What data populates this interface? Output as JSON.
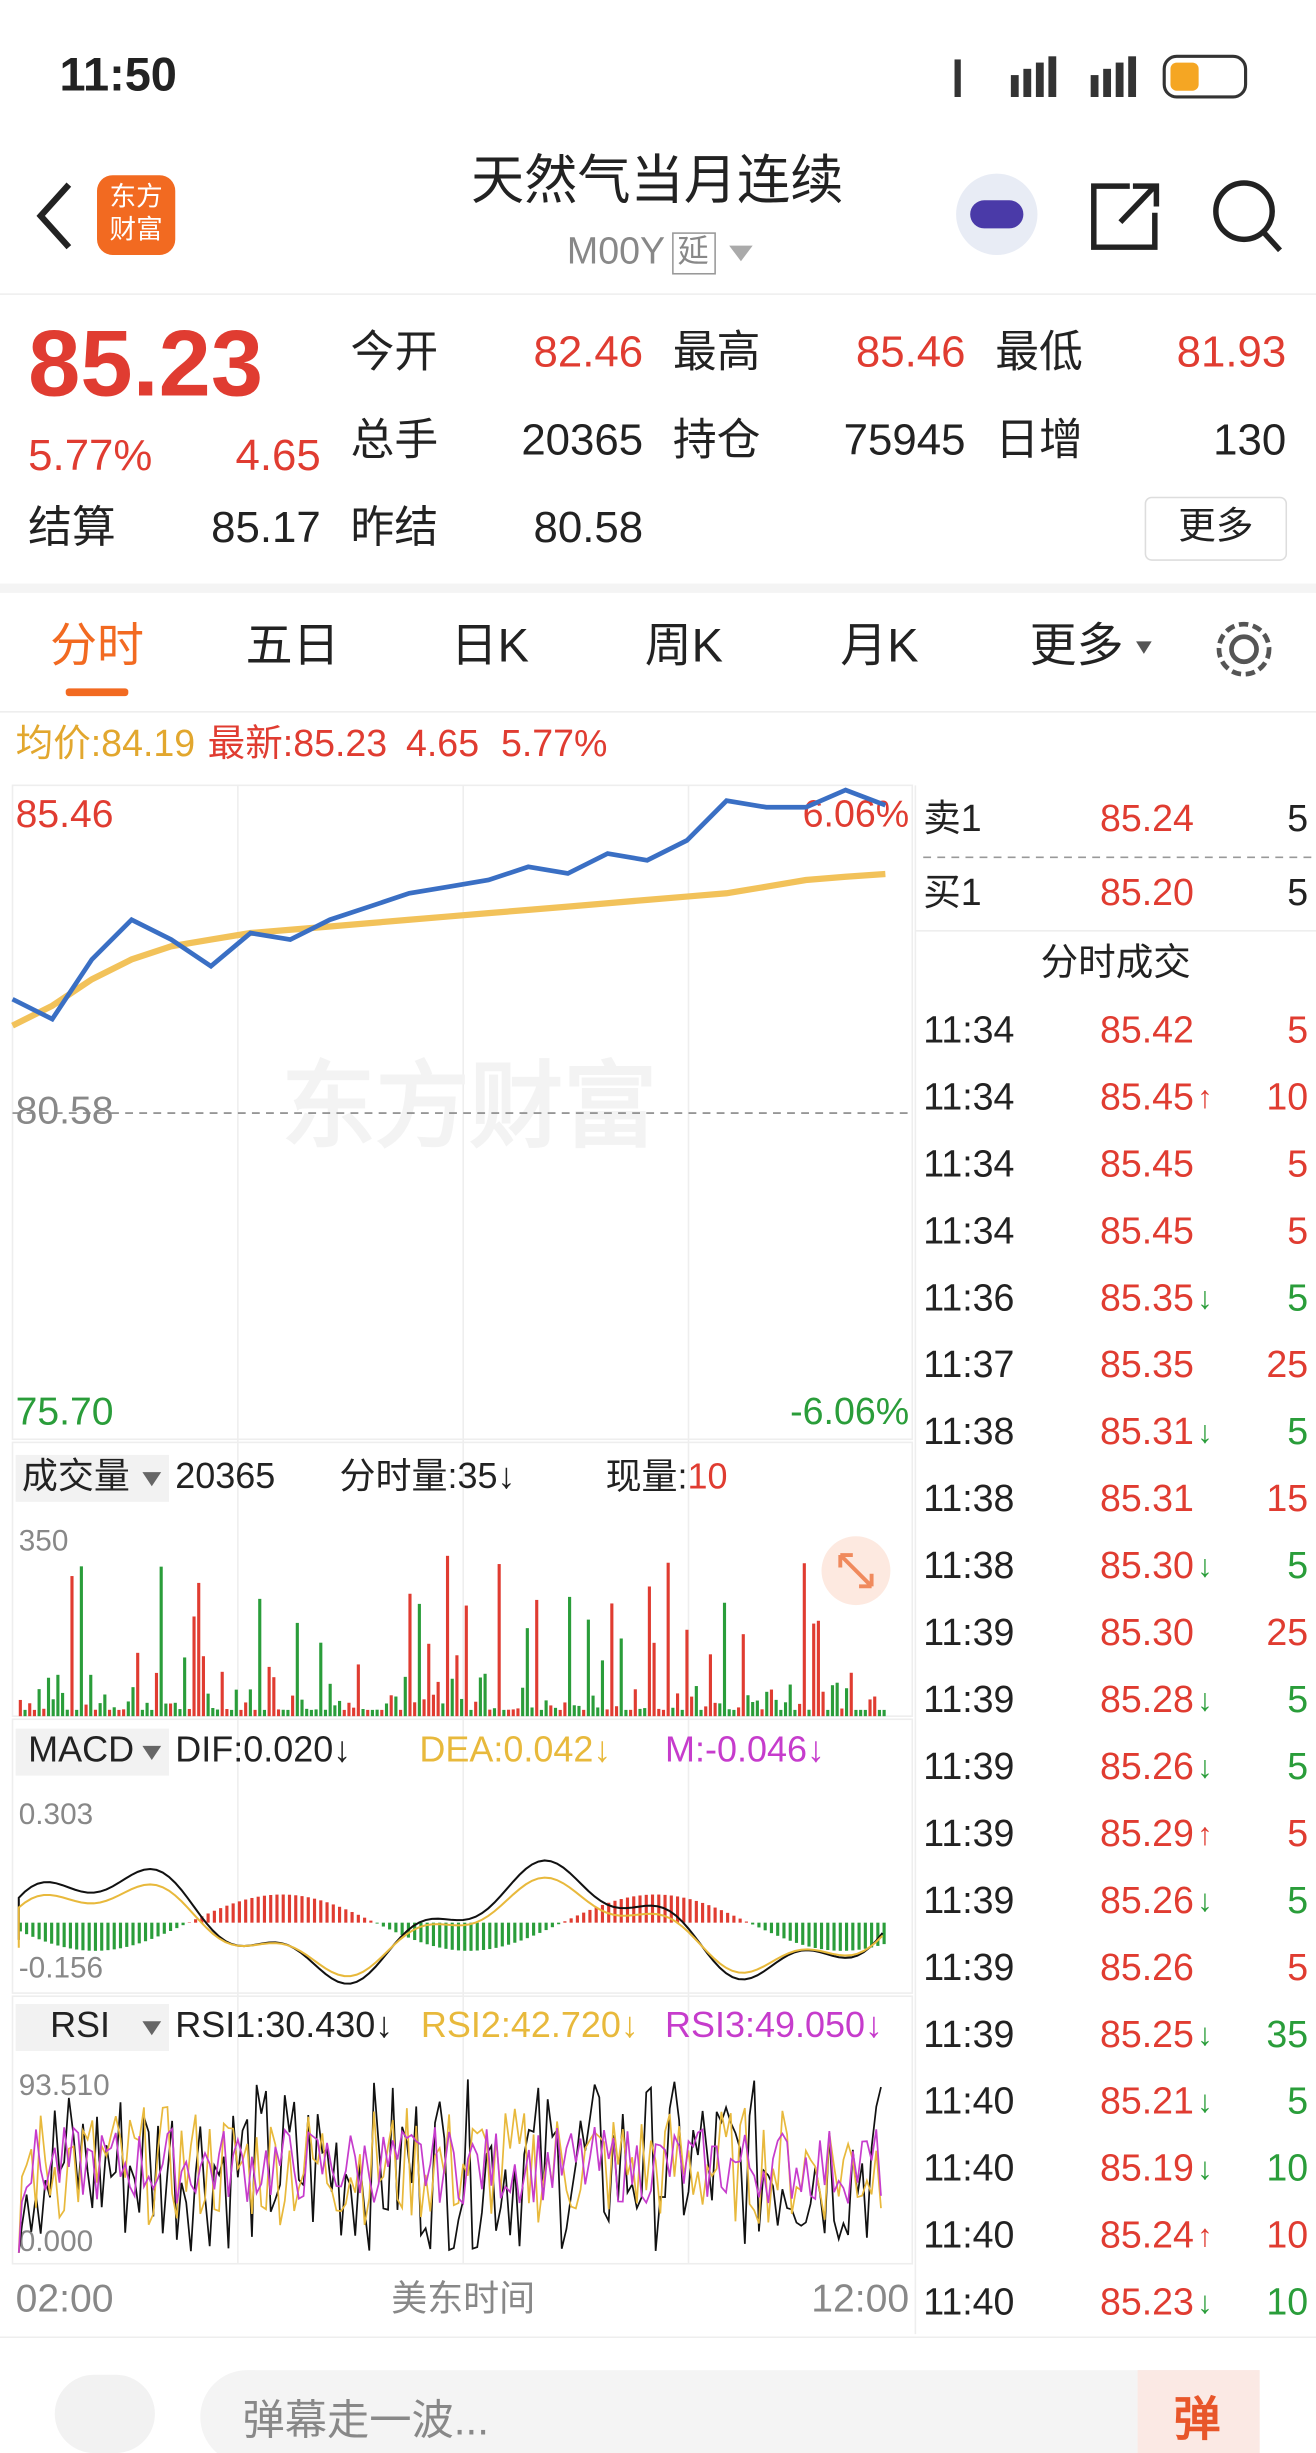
{
  "status": {
    "time": "11:50"
  },
  "header": {
    "logo": [
      "东方",
      "财富"
    ],
    "title": "天然气当月连续",
    "code": "M00Y",
    "tag": "延"
  },
  "quote": {
    "price": "85.23",
    "change_pct": "5.77%",
    "change": "4.65",
    "fields": [
      {
        "label": "今开",
        "value": "82.46"
      },
      {
        "label": "最高",
        "value": "85.46"
      },
      {
        "label": "最低",
        "value": "81.93"
      },
      {
        "label": "总手",
        "value": "20365"
      },
      {
        "label": "持仓",
        "value": "75945"
      },
      {
        "label": "日增",
        "value": "130"
      },
      {
        "label": "结算",
        "value": "85.17"
      },
      {
        "label": "昨结",
        "value": "80.58"
      }
    ],
    "more": "更多"
  },
  "tabs": [
    "分时",
    "五日",
    "日K",
    "周K",
    "月K",
    "更多"
  ],
  "avg_line": {
    "avg_label": "均价:",
    "avg": "84.19",
    "latest_label": "最新:",
    "latest": "85.23",
    "change": "4.65",
    "change_pct": "5.77%"
  },
  "chart_data": {
    "type": "line",
    "watermark": "东方财富",
    "ylim": [
      75.7,
      85.46
    ],
    "yticks": [
      {
        "value": 85.46,
        "label": "85.46"
      },
      {
        "value": 80.58,
        "label": "80.58"
      },
      {
        "value": 75.7,
        "label": "75.70"
      }
    ],
    "pct_top": "6.06%",
    "pct_bottom": "-6.06%",
    "series": [
      {
        "name": "价格",
        "color": "#3a6fc4",
        "values": [
          82.3,
          82.0,
          82.9,
          83.5,
          83.2,
          82.8,
          83.3,
          83.2,
          83.5,
          83.7,
          83.9,
          84.0,
          84.1,
          84.3,
          84.2,
          84.5,
          84.4,
          84.7,
          85.3,
          85.2,
          85.2,
          85.46,
          85.23
        ]
      },
      {
        "name": "均价",
        "color": "#f2c25a",
        "values": [
          81.9,
          82.2,
          82.6,
          82.9,
          83.1,
          83.2,
          83.3,
          83.35,
          83.4,
          83.45,
          83.5,
          83.55,
          83.6,
          83.65,
          83.7,
          83.75,
          83.8,
          83.85,
          83.9,
          84.0,
          84.1,
          84.15,
          84.19
        ]
      }
    ]
  },
  "volume": {
    "label": "成交量",
    "total": "20365",
    "interval": "分时量:35↓",
    "current_label": "现量:",
    "current": "10",
    "axis_max": "350"
  },
  "macd": {
    "label": "MACD",
    "dif": "DIF:0.020↓",
    "dea": "DEA:0.042↓",
    "m": "M:-0.046↓",
    "axis_max": "0.303",
    "axis_min": "-0.156"
  },
  "rsi": {
    "label": "RSI",
    "rsi1": "RSI1:30.430↓",
    "rsi2": "RSI2:42.720↓",
    "rsi3": "RSI3:49.050↓",
    "axis_max": "93.510",
    "axis_min": "0.000"
  },
  "x_axis": {
    "start": "02:00",
    "label": "美东时间",
    "end": "12:00"
  },
  "order_book": {
    "sell": {
      "label": "卖1",
      "price": "85.24",
      "volume": "5"
    },
    "buy": {
      "label": "买1",
      "price": "85.20",
      "volume": "5"
    }
  },
  "trades": {
    "title": "分时成交",
    "rows": [
      {
        "time": "11:34",
        "price": "85.42",
        "volume": "5"
      },
      {
        "time": "11:34",
        "price": "85.45",
        "arrow": "↑",
        "volume": "10"
      },
      {
        "time": "11:34",
        "price": "85.45",
        "volume": "5"
      },
      {
        "time": "11:34",
        "price": "85.45",
        "volume": "5"
      },
      {
        "time": "11:36",
        "price": "85.35",
        "arrow": "↓",
        "volume": "5"
      },
      {
        "time": "11:37",
        "price": "85.35",
        "volume": "25"
      },
      {
        "time": "11:38",
        "price": "85.31",
        "arrow": "↓",
        "volume": "5"
      },
      {
        "time": "11:38",
        "price": "85.31",
        "volume": "15"
      },
      {
        "time": "11:38",
        "price": "85.30",
        "arrow": "↓",
        "volume": "5"
      },
      {
        "time": "11:39",
        "price": "85.30",
        "volume": "25"
      },
      {
        "time": "11:39",
        "price": "85.28",
        "arrow": "↓",
        "volume": "5"
      },
      {
        "time": "11:39",
        "price": "85.26",
        "arrow": "↓",
        "volume": "5"
      },
      {
        "time": "11:39",
        "price": "85.29",
        "arrow": "↑",
        "volume": "5"
      },
      {
        "time": "11:39",
        "price": "85.26",
        "arrow": "↓",
        "volume": "5"
      },
      {
        "time": "11:39",
        "price": "85.26",
        "volume": "5"
      },
      {
        "time": "11:39",
        "price": "85.25",
        "arrow": "↓",
        "volume": "35"
      },
      {
        "time": "11:40",
        "price": "85.21",
        "arrow": "↓",
        "volume": "5"
      },
      {
        "time": "11:40",
        "price": "85.19",
        "arrow": "↓",
        "volume": "10"
      },
      {
        "time": "11:40",
        "price": "85.24",
        "arrow": "↑",
        "volume": "10"
      },
      {
        "time": "11:40",
        "price": "85.23",
        "arrow": "↓",
        "volume": "10"
      }
    ]
  },
  "bottom_bar": {
    "placeholder": "弹幕走一波...",
    "button": "弹"
  }
}
